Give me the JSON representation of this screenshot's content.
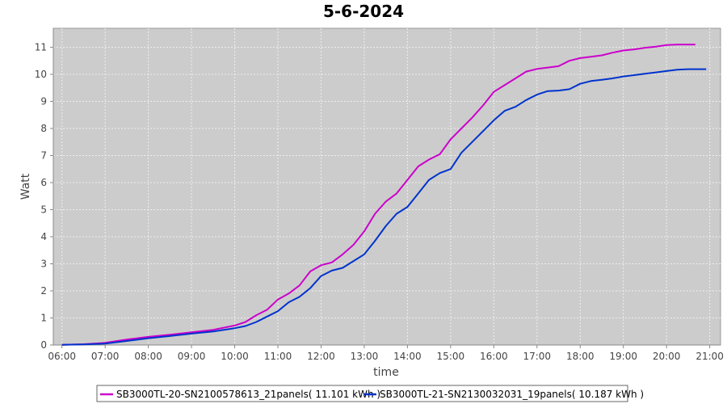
{
  "chart_data": {
    "type": "line",
    "title": "5-6-2024",
    "xlabel": "time",
    "ylabel": "Watt",
    "xlim": [
      "05:48",
      "21:15"
    ],
    "ylim": [
      0,
      11.7
    ],
    "x_ticks": [
      "06:00",
      "07:00",
      "08:00",
      "09:00",
      "10:00",
      "11:00",
      "12:00",
      "13:00",
      "14:00",
      "15:00",
      "16:00",
      "17:00",
      "18:00",
      "19:00",
      "20:00",
      "21:00"
    ],
    "y_ticks": [
      0,
      1,
      2,
      3,
      4,
      5,
      6,
      7,
      8,
      9,
      10,
      11
    ],
    "grid": true,
    "legend_position": "bottom",
    "series": [
      {
        "name": "SB3000TL-20-SN2100578613_21panels( 11.101 kWh )",
        "color": "#cc00cc",
        "x": [
          "06:00",
          "06:30",
          "07:00",
          "07:30",
          "08:00",
          "08:30",
          "09:00",
          "09:30",
          "10:00",
          "10:15",
          "10:30",
          "10:45",
          "11:00",
          "11:15",
          "11:30",
          "11:45",
          "12:00",
          "12:15",
          "12:30",
          "12:45",
          "13:00",
          "13:15",
          "13:30",
          "13:45",
          "14:00",
          "14:15",
          "14:30",
          "14:45",
          "15:00",
          "15:15",
          "15:30",
          "15:45",
          "16:00",
          "16:15",
          "16:30",
          "16:45",
          "17:00",
          "17:15",
          "17:30",
          "17:45",
          "18:00",
          "18:15",
          "18:30",
          "18:45",
          "19:00",
          "19:15",
          "19:30",
          "19:45",
          "20:00",
          "20:15",
          "20:40"
        ],
        "values": [
          0.01,
          0.03,
          0.08,
          0.2,
          0.3,
          0.38,
          0.47,
          0.56,
          0.72,
          0.85,
          1.1,
          1.3,
          1.68,
          1.9,
          2.2,
          2.72,
          2.95,
          3.05,
          3.35,
          3.7,
          4.2,
          4.85,
          5.3,
          5.6,
          6.1,
          6.6,
          6.85,
          7.05,
          7.6,
          8.0,
          8.4,
          8.85,
          9.35,
          9.6,
          9.85,
          10.1,
          10.2,
          10.25,
          10.3,
          10.5,
          10.6,
          10.65,
          10.7,
          10.8,
          10.88,
          10.92,
          10.98,
          11.02,
          11.08,
          11.1,
          11.1
        ]
      },
      {
        "name": "SB3000TL-21-SN2130032031_19panels( 10.187 kWh )",
        "color": "#0033cc",
        "x": [
          "06:00",
          "06:30",
          "07:00",
          "07:30",
          "08:00",
          "08:30",
          "09:00",
          "09:30",
          "10:00",
          "10:15",
          "10:30",
          "10:45",
          "11:00",
          "11:15",
          "11:30",
          "11:45",
          "12:00",
          "12:15",
          "12:30",
          "12:45",
          "13:00",
          "13:15",
          "13:30",
          "13:45",
          "14:00",
          "14:15",
          "14:30",
          "14:45",
          "15:00",
          "15:15",
          "15:30",
          "15:45",
          "16:00",
          "16:15",
          "16:30",
          "16:45",
          "17:00",
          "17:15",
          "17:30",
          "17:45",
          "18:00",
          "18:15",
          "18:30",
          "18:45",
          "19:00",
          "19:15",
          "19:30",
          "19:45",
          "20:00",
          "20:15",
          "20:30",
          "20:55"
        ],
        "values": [
          0.01,
          0.02,
          0.05,
          0.15,
          0.25,
          0.33,
          0.42,
          0.5,
          0.62,
          0.7,
          0.85,
          1.05,
          1.25,
          1.58,
          1.78,
          2.1,
          2.55,
          2.75,
          2.85,
          3.1,
          3.35,
          3.85,
          4.4,
          4.85,
          5.1,
          5.6,
          6.1,
          6.35,
          6.5,
          7.1,
          7.5,
          7.9,
          8.3,
          8.65,
          8.8,
          9.05,
          9.25,
          9.38,
          9.4,
          9.45,
          9.65,
          9.75,
          9.8,
          9.85,
          9.92,
          9.97,
          10.02,
          10.07,
          10.12,
          10.17,
          10.19,
          10.19
        ]
      }
    ]
  }
}
